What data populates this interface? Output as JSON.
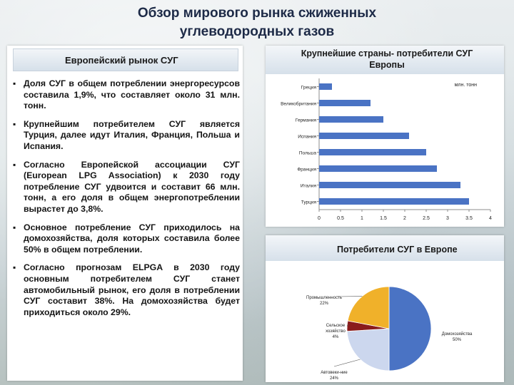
{
  "slide": {
    "title_line1": "Обзор мирового рынка сжиженных",
    "title_line2": "углеводородных газов"
  },
  "left_panel": {
    "header": "Европейский рынок СУГ",
    "bullets": [
      "Доля СУГ в общем потреблении энергоресурсов составила 1,9%, что составляет около 31 млн. тонн.",
      "Крупнейшим потребителем СУГ является Турция, далее идут Италия, Франция, Польша и Испания.",
      "Согласно Европейской ассоциации СУГ (European LPG Association) к 2030 году потребление СУГ удвоится и составит 66 млн. тонн, а его доля в общем энергопотреблении вырастет до 3,8%.",
      "Основное потребление СУГ приходилось на домохозяйства, доля которых составила более 50% в общем потреблении.",
      "Согласно прогнозам ELPGA в 2030 году основным потребителем СУГ станет автомобильный рынок, его доля в потреблении СУГ составит 38%. На домохозяйства будет приходиться около 29%."
    ]
  },
  "colors": {
    "bar": "#4a73c4",
    "pie_households": "#4a73c4",
    "pie_industry": "#f0b12a",
    "pie_agriculture": "#8a1c1c",
    "pie_auto": "#ccd7ee"
  },
  "chart_data": [
    {
      "type": "bar",
      "orientation": "horizontal",
      "title_line1": "Крупнейшие страны- потребители СУГ",
      "title_line2": "Европы",
      "unit_label": "млн. тонн",
      "categories": [
        "Греция",
        "Великобритания",
        "Германия",
        "Испания",
        "Польша",
        "Франция",
        "Италия",
        "Турция"
      ],
      "values": [
        0.3,
        1.2,
        1.5,
        2.1,
        2.5,
        2.75,
        3.3,
        3.5
      ],
      "xlim": [
        0,
        4
      ],
      "xticks": [
        "0",
        "0.5",
        "1",
        "1.5",
        "2",
        "2.5",
        "3",
        "3.5",
        "4"
      ],
      "grid": false
    },
    {
      "type": "pie",
      "title": "Потребители СУГ в Европе",
      "slices": [
        {
          "label": "Домохозяйства",
          "pct_label": "50%",
          "value": 50,
          "color_key": "pie_households"
        },
        {
          "label": "Автовеки-ние",
          "pct_label": "24%",
          "value": 24,
          "color_key": "pie_auto"
        },
        {
          "label": "Сельское хозяйство",
          "pct_label": "4%",
          "value": 4,
          "color_key": "pie_agriculture"
        },
        {
          "label": "Промышленность",
          "pct_label": "22%",
          "value": 22,
          "color_key": "pie_industry"
        }
      ]
    }
  ]
}
